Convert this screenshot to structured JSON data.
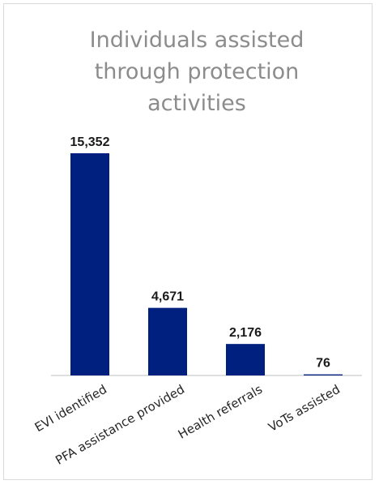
{
  "chart_data": {
    "type": "bar",
    "title": [
      "Individuals assisted",
      "through protection",
      "activities"
    ],
    "categories": [
      "EVI identified",
      "PFA assistance provided",
      "Health referrals",
      "VoTs assisted"
    ],
    "values": [
      15352,
      4671,
      2176,
      76
    ],
    "data_labels": [
      "15,352",
      "4,671",
      "2,176",
      "76"
    ],
    "bar_color": "#002080",
    "axis_color": "#bfbfbf",
    "ylim": [
      0,
      15352
    ],
    "grid": false,
    "legend": "none"
  }
}
